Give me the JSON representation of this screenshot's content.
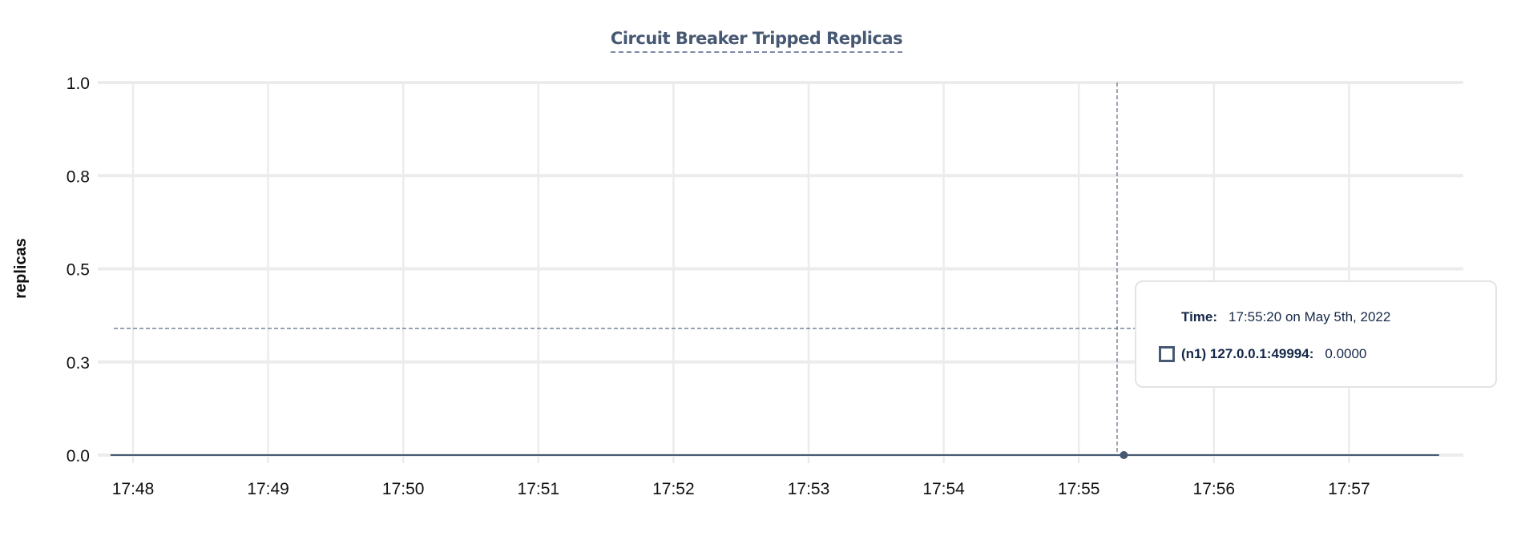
{
  "chart_data": {
    "type": "line",
    "title": "Circuit Breaker Tripped Replicas",
    "xlabel": "",
    "ylabel": "replicas",
    "x_tick_labels": [
      "17:48",
      "17:49",
      "17:50",
      "17:51",
      "17:52",
      "17:53",
      "17:54",
      "17:55",
      "17:56",
      "17:57"
    ],
    "y_ticks": [
      0,
      0.25,
      0.5,
      0.75,
      1.0
    ],
    "y_tick_labels": [
      "0.0",
      "0.3",
      "0.5",
      "0.8",
      "1.0"
    ],
    "ylim": [
      0,
      1
    ],
    "xlim_minutes": [
      "17:47:45",
      "17:57:50"
    ],
    "grid": true,
    "series": [
      {
        "name": "(n1) 127.0.0.1:49994",
        "x": [
          "17:47:50",
          "17:57:40"
        ],
        "values": [
          0,
          0
        ],
        "color": "#475872"
      }
    ],
    "hover": {
      "x": "17:55:20",
      "y": 0,
      "crosshair_y": 0.34
    }
  },
  "tooltip": {
    "time_label": "Time:",
    "time_value": "17:55:20 on May 5th, 2022",
    "series_label": "(n1) 127.0.0.1:49994:",
    "series_value": "0.0000"
  }
}
